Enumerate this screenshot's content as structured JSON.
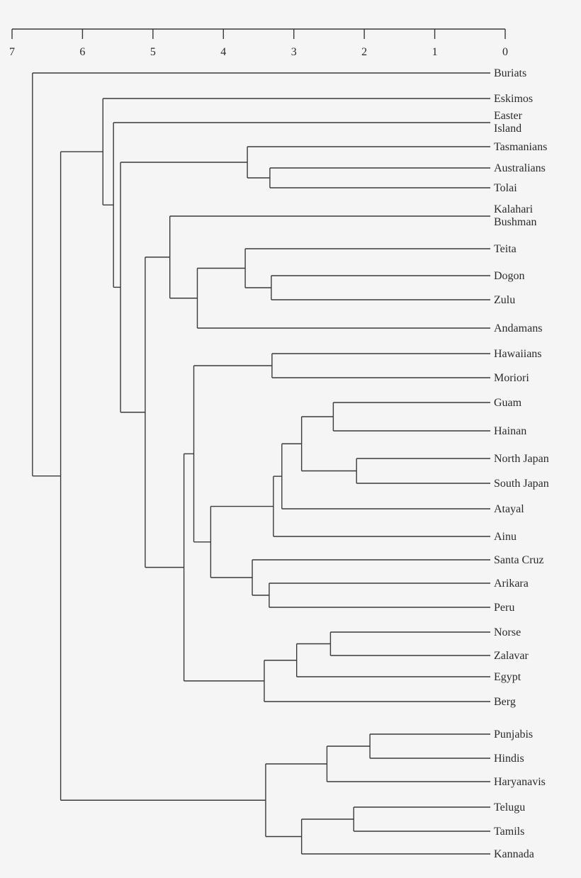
{
  "chart_data": {
    "type": "dendrogram",
    "orientation": "leaves-right",
    "axis": {
      "ticks": [
        "7",
        "6",
        "5",
        "4",
        "3",
        "2",
        "1",
        "0"
      ],
      "range": [
        7,
        0
      ],
      "position": "top"
    },
    "line_color": "#3a3a3a",
    "background": "#f5f5f5",
    "tree": {
      "h": 6.71,
      "c": [
        "Buriats",
        {
          "h": 6.31,
          "c": [
            {
              "h": 5.71,
              "c": [
                "Eskimos",
                {
                  "h": 5.56,
                  "c": [
                    "Easter Island",
                    {
                      "h": 5.46,
                      "c": [
                        {
                          "h": 3.66,
                          "c": [
                            "Tasmanians",
                            {
                              "h": 3.34,
                              "c": [
                                "Australians",
                                "Tolai"
                              ]
                            }
                          ]
                        },
                        {
                          "h": 5.11,
                          "c": [
                            {
                              "h": 4.76,
                              "c": [
                                "Kalahari Bushman",
                                {
                                  "h": 4.37,
                                  "c": [
                                    {
                                      "h": 3.69,
                                      "c": [
                                        "Teita",
                                        {
                                          "h": 3.32,
                                          "c": [
                                            "Dogon",
                                            "Zulu"
                                          ]
                                        }
                                      ]
                                    },
                                    "Andamans"
                                  ]
                                }
                              ]
                            },
                            {
                              "h": 4.56,
                              "c": [
                                {
                                  "h": 4.42,
                                  "c": [
                                    {
                                      "h": 3.31,
                                      "c": [
                                        "Hawaiians",
                                        "Moriori"
                                      ]
                                    },
                                    {
                                      "h": 4.18,
                                      "c": [
                                        {
                                          "h": 3.29,
                                          "c": [
                                            {
                                              "h": 3.17,
                                              "c": [
                                                {
                                                  "h": 2.89,
                                                  "c": [
                                                    {
                                                      "h": 2.44,
                                                      "c": [
                                                        "Guam",
                                                        "Hainan"
                                                      ]
                                                    },
                                                    {
                                                      "h": 2.11,
                                                      "c": [
                                                        "North Japan",
                                                        "South Japan"
                                                      ]
                                                    }
                                                  ]
                                                },
                                                "Atayal"
                                              ]
                                            },
                                            "Ainu"
                                          ]
                                        },
                                        {
                                          "h": 3.59,
                                          "c": [
                                            "Santa Cruz",
                                            {
                                              "h": 3.35,
                                              "c": [
                                                "Arikara",
                                                "Peru"
                                              ]
                                            }
                                          ]
                                        }
                                      ]
                                    }
                                  ]
                                },
                                {
                                  "h": 3.42,
                                  "c": [
                                    {
                                      "h": 2.96,
                                      "c": [
                                        {
                                          "h": 2.48,
                                          "c": [
                                            "Norse",
                                            "Zalavar"
                                          ]
                                        },
                                        "Egypt"
                                      ]
                                    },
                                    "Berg"
                                  ]
                                }
                              ]
                            }
                          ]
                        }
                      ]
                    }
                  ]
                }
              ]
            },
            {
              "h": 3.4,
              "c": [
                {
                  "h": 2.53,
                  "c": [
                    {
                      "h": 1.92,
                      "c": [
                        "Punjabis",
                        "Hindis"
                      ]
                    },
                    "Haryanavis"
                  ]
                },
                {
                  "h": 2.89,
                  "c": [
                    {
                      "h": 2.15,
                      "c": [
                        "Telugu",
                        "Tamils"
                      ]
                    },
                    "Kannada"
                  ]
                }
              ]
            }
          ]
        }
      ]
    }
  }
}
